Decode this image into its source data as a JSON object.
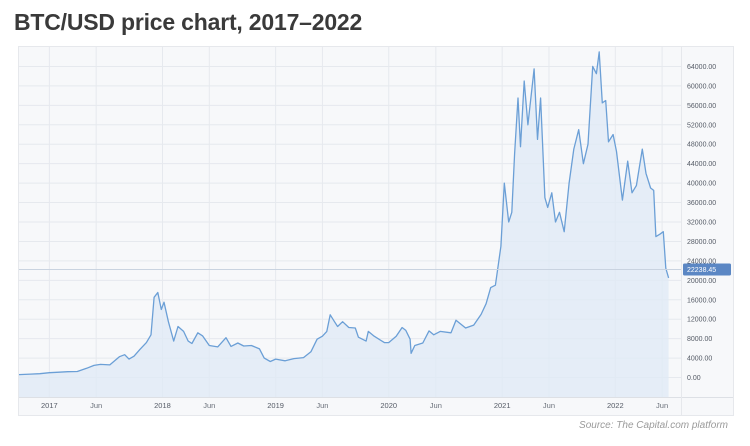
{
  "title": "BTC/USD price chart, 2017–2022",
  "source": "Source: The Capital.com platform",
  "colors": {
    "line": "#6b9fd6",
    "fill": "#dfeaf6",
    "grid": "#e6e9ee",
    "current_badge": "#5b87c4"
  },
  "chart_data": {
    "type": "area",
    "title": "",
    "xlabel": "",
    "ylabel": "",
    "ylim": [
      -4000,
      68000
    ],
    "xlim": [
      "2016-09-25",
      "2022-08-01"
    ],
    "y_ticks": [
      0,
      4000,
      8000,
      12000,
      16000,
      20000,
      24000,
      28000,
      32000,
      36000,
      40000,
      44000,
      48000,
      52000,
      56000,
      60000,
      64000
    ],
    "y_tick_labels": [
      "0.00",
      "4000.00",
      "8000.00",
      "12000.00",
      "16000.00",
      "20000.00",
      "24000.00",
      "28000.00",
      "32000.00",
      "36000.00",
      "40000.00",
      "44000.00",
      "48000.00",
      "52000.00",
      "56000.00",
      "60000.00",
      "64000.00"
    ],
    "x_ticks": [
      {
        "date": "2017-01-01",
        "label": "2017",
        "major": true
      },
      {
        "date": "2017-06-01",
        "label": "Jun",
        "major": false
      },
      {
        "date": "2018-01-01",
        "label": "2018",
        "major": true
      },
      {
        "date": "2018-06-01",
        "label": "Jun",
        "major": false
      },
      {
        "date": "2019-01-01",
        "label": "2019",
        "major": true
      },
      {
        "date": "2019-06-01",
        "label": "Jun",
        "major": false
      },
      {
        "date": "2020-01-01",
        "label": "2020",
        "major": true
      },
      {
        "date": "2020-06-01",
        "label": "Jun",
        "major": false
      },
      {
        "date": "2021-01-01",
        "label": "2021",
        "major": true
      },
      {
        "date": "2021-06-01",
        "label": "Jun",
        "major": false
      },
      {
        "date": "2022-01-01",
        "label": "2022",
        "major": true
      },
      {
        "date": "2022-06-01",
        "label": "Jun",
        "major": false
      }
    ],
    "current_value": 22238.45,
    "current_label": "22238.45",
    "grid": true,
    "series": [
      {
        "x": [
          "2016-09-25",
          "2016-11-01",
          "2016-12-01",
          "2017-01-01",
          "2017-02-01",
          "2017-03-01",
          "2017-04-01",
          "2017-05-01",
          "2017-05-25",
          "2017-06-15",
          "2017-07-15",
          "2017-08-15",
          "2017-09-01",
          "2017-09-15",
          "2017-10-01",
          "2017-10-20",
          "2017-11-10",
          "2017-11-25",
          "2017-12-05",
          "2017-12-17",
          "2017-12-28",
          "2018-01-06",
          "2018-01-20",
          "2018-02-06",
          "2018-02-20",
          "2018-03-10",
          "2018-03-25",
          "2018-04-06",
          "2018-04-25",
          "2018-05-10",
          "2018-06-01",
          "2018-06-28",
          "2018-07-25",
          "2018-08-10",
          "2018-09-01",
          "2018-09-20",
          "2018-10-15",
          "2018-11-10",
          "2018-11-25",
          "2018-12-15",
          "2019-01-01",
          "2019-02-01",
          "2019-03-01",
          "2019-04-01",
          "2019-04-25",
          "2019-05-15",
          "2019-06-01",
          "2019-06-15",
          "2019-06-26",
          "2019-07-10",
          "2019-07-20",
          "2019-08-05",
          "2019-08-25",
          "2019-09-15",
          "2019-09-25",
          "2019-10-20",
          "2019-10-27",
          "2019-11-15",
          "2019-12-18",
          "2020-01-01",
          "2020-01-25",
          "2020-02-13",
          "2020-02-25",
          "2020-03-10",
          "2020-03-13",
          "2020-03-25",
          "2020-04-20",
          "2020-05-10",
          "2020-05-25",
          "2020-06-15",
          "2020-07-20",
          "2020-08-05",
          "2020-09-05",
          "2020-10-01",
          "2020-10-25",
          "2020-11-10",
          "2020-11-25",
          "2020-12-10",
          "2020-12-20",
          "2020-12-28",
          "2021-01-08",
          "2021-01-22",
          "2021-02-01",
          "2021-02-10",
          "2021-02-21",
          "2021-03-01",
          "2021-03-13",
          "2021-03-25",
          "2021-04-14",
          "2021-04-25",
          "2021-05-05",
          "2021-05-19",
          "2021-05-28",
          "2021-06-10",
          "2021-06-22",
          "2021-07-05",
          "2021-07-20",
          "2021-08-05",
          "2021-08-20",
          "2021-09-05",
          "2021-09-20",
          "2021-10-05",
          "2021-10-20",
          "2021-11-01",
          "2021-11-10",
          "2021-11-20",
          "2021-12-01",
          "2021-12-10",
          "2021-12-25",
          "2022-01-05",
          "2022-01-24",
          "2022-02-10",
          "2022-02-24",
          "2022-03-10",
          "2022-03-29",
          "2022-04-10",
          "2022-04-25",
          "2022-05-05",
          "2022-05-12",
          "2022-05-25",
          "2022-06-05",
          "2022-06-13",
          "2022-06-22"
        ],
        "y": [
          600,
          720,
          800,
          1000,
          1100,
          1200,
          1250,
          1900,
          2500,
          2700,
          2600,
          4300,
          4700,
          3800,
          4400,
          5800,
          7200,
          8800,
          16500,
          17500,
          14000,
          15500,
          11500,
          7500,
          10500,
          9500,
          7500,
          7000,
          9200,
          8600,
          6600,
          6300,
          8200,
          6400,
          7100,
          6500,
          6600,
          5900,
          4000,
          3300,
          3800,
          3450,
          3900,
          4100,
          5300,
          7900,
          8500,
          9500,
          12900,
          11500,
          10500,
          11500,
          10300,
          10200,
          8300,
          7500,
          9500,
          8500,
          7200,
          7200,
          8500,
          10300,
          9700,
          7900,
          5000,
          6600,
          7100,
          9600,
          8800,
          9500,
          9200,
          11800,
          10200,
          10800,
          13000,
          15200,
          18500,
          19000,
          23500,
          27000,
          40000,
          32000,
          34000,
          46000,
          57500,
          47500,
          61000,
          52000,
          63500,
          49000,
          57500,
          37000,
          35000,
          38000,
          32000,
          34000,
          30000,
          40000,
          47000,
          51000,
          44000,
          48000,
          64000,
          62500,
          67000,
          56500,
          57000,
          48500,
          50000,
          46500,
          36500,
          44500,
          38000,
          39500,
          47000,
          42000,
          39000,
          38500,
          29000,
          29500,
          30000,
          22500,
          20500
        ]
      }
    ]
  }
}
